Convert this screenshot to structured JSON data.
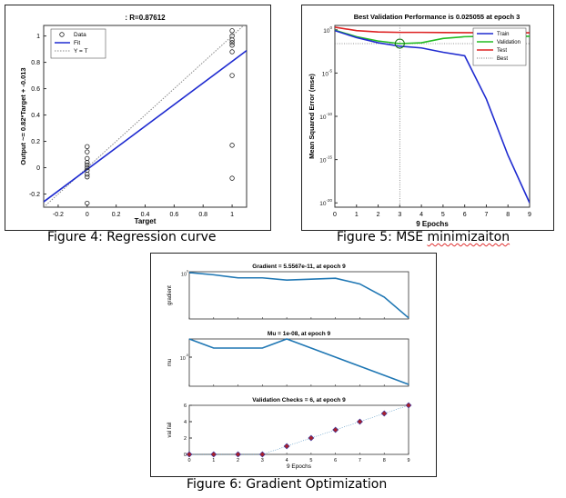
{
  "regression": {
    "chart_data": {
      "type": "scatter",
      "title": ": R=0.87612",
      "xlabel": "Target",
      "ylabel": "Output ~= 0.82*Target + -0.013",
      "xlim": [
        -0.3,
        1.1
      ],
      "ylim": [
        -0.3,
        1.08
      ],
      "xticks": [
        -0.2,
        0,
        0.2,
        0.4,
        0.6,
        0.8,
        1
      ],
      "xtick_labels": [
        "-0.2",
        "0",
        "0.2",
        "0.4",
        "0.6",
        "0.8",
        "1"
      ],
      "yticks": [
        -0.2,
        0,
        0.2,
        0.4,
        0.6,
        0.8,
        1
      ],
      "ytick_labels": [
        "-0.2",
        "0",
        "0.2",
        "0.4",
        "0.6",
        "0.8",
        "1"
      ],
      "legend": [
        {
          "label": "Data",
          "marker": "circle",
          "color": "#000000"
        },
        {
          "label": "Fit",
          "style": "solid",
          "color": "#1f2bd0"
        },
        {
          "label": "Y = T",
          "style": "dotted",
          "color": "#888888"
        }
      ],
      "legend_position": "top-left",
      "data_points": [
        {
          "x": 0,
          "y": 0.16
        },
        {
          "x": 0,
          "y": 0.12
        },
        {
          "x": 0,
          "y": 0.07
        },
        {
          "x": 0,
          "y": 0.04
        },
        {
          "x": 0,
          "y": 0.02
        },
        {
          "x": 0,
          "y": 0.0
        },
        {
          "x": 0,
          "y": -0.02
        },
        {
          "x": 0,
          "y": -0.05
        },
        {
          "x": 0,
          "y": -0.07
        },
        {
          "x": 0,
          "y": -0.27
        },
        {
          "x": 1,
          "y": 1.04
        },
        {
          "x": 1,
          "y": 1.0
        },
        {
          "x": 1,
          "y": 0.97
        },
        {
          "x": 1,
          "y": 0.95
        },
        {
          "x": 1,
          "y": 0.93
        },
        {
          "x": 1,
          "y": 0.88
        },
        {
          "x": 1,
          "y": 0.7
        },
        {
          "x": 1,
          "y": 0.17
        },
        {
          "x": 1,
          "y": -0.08
        }
      ],
      "fit": {
        "slope": 0.82,
        "intercept": -0.013
      },
      "grid": false
    },
    "caption": "Figure 4: Regression curve"
  },
  "mse": {
    "chart_data": {
      "type": "line",
      "title": "Best Validation Performance is 0.025055 at epoch 3",
      "xlabel": "9 Epochs",
      "ylabel": "Mean Squared Error (mse)",
      "yscale": "log",
      "xlim": [
        0,
        9
      ],
      "ylim_log10": [
        -20.5,
        0.5
      ],
      "xticks": [
        0,
        1,
        2,
        3,
        4,
        5,
        6,
        7,
        8,
        9
      ],
      "xtick_labels": [
        "0",
        "1",
        "2",
        "3",
        "4",
        "5",
        "6",
        "7",
        "8",
        "9"
      ],
      "ytick_values": [
        "10^0",
        "10^-5",
        "10^-10",
        "10^-15",
        "10^-20"
      ],
      "ytick_labels": [
        {
          "base": "10",
          "exp": "0"
        },
        {
          "base": "10",
          "exp": "-5"
        },
        {
          "base": "10",
          "exp": "-10"
        },
        {
          "base": "10",
          "exp": "-15"
        },
        {
          "base": "10",
          "exp": "-20"
        }
      ],
      "series": [
        {
          "name": "Train",
          "color": "#1f2bd0",
          "x": [
            0,
            1,
            2,
            3,
            4,
            5,
            6,
            7,
            8,
            9
          ],
          "y_log10": [
            -0.1,
            -0.9,
            -1.5,
            -1.9,
            -2.1,
            -2.6,
            -3.0,
            -8.0,
            -14.5,
            -20.0
          ]
        },
        {
          "name": "Validation",
          "color": "#22bb22",
          "x": [
            0,
            1,
            2,
            3,
            4,
            5,
            6,
            7,
            8,
            9
          ],
          "y_log10": [
            -0.05,
            -0.8,
            -1.3,
            -1.6,
            -1.5,
            -1.0,
            -0.8,
            -0.75,
            -0.75,
            -0.75
          ]
        },
        {
          "name": "Test",
          "color": "#dd2222",
          "x": [
            0,
            1,
            2,
            3,
            4,
            5,
            6,
            7,
            8,
            9
          ],
          "y_log10": [
            0.3,
            -0.1,
            -0.25,
            -0.3,
            -0.3,
            -0.32,
            -0.33,
            -0.35,
            -0.35,
            -0.35
          ]
        }
      ],
      "best": {
        "label": "Best",
        "epoch": 3,
        "value": 0.025055,
        "y_log10": -1.6
      },
      "legend_position": "top-right",
      "grid": false
    },
    "caption_text": "Figure 5: MSE ",
    "caption_misspelled": "minimizaiton"
  },
  "gradient_opt": {
    "panels": [
      {
        "title": "Gradient = 5.5567e-11, at epoch 9",
        "ylabel": "gradient",
        "tick_base": "10",
        "tick_exp": "0",
        "yscale": "log",
        "ylim_log10": [
          -10.5,
          0.3
        ],
        "tick_log10": 0,
        "series": {
          "name": "gradient",
          "x": [
            0,
            1,
            2,
            3,
            4,
            5,
            6,
            7,
            8,
            9
          ],
          "y_log10": [
            0.1,
            -0.4,
            -1.1,
            -1.1,
            -1.6,
            -1.4,
            -1.2,
            -2.5,
            -5.5,
            -10.25
          ]
        }
      },
      {
        "title": "Mu = 1e-08, at epoch 9",
        "ylabel": "mu",
        "tick_base": "10",
        "tick_exp": "-5",
        "yscale": "log",
        "ylim_log10": [
          -8.2,
          -3.0
        ],
        "tick_log10": -5,
        "series": {
          "name": "mu",
          "x": [
            0,
            1,
            2,
            3,
            4,
            5,
            6,
            7,
            8,
            9
          ],
          "y_log10": [
            -3.0,
            -4.0,
            -4.0,
            -4.0,
            -3.0,
            -4.0,
            -5.0,
            -6.0,
            -7.0,
            -8.0
          ]
        }
      },
      {
        "title": "Validation Checks = 6, at epoch 9",
        "ylabel": "val fail",
        "xlabel": "9 Epochs",
        "ylim": [
          0,
          6
        ],
        "yticks": [
          "0",
          "2",
          "4",
          "6"
        ],
        "xticks": [
          "0",
          "1",
          "2",
          "3",
          "4",
          "5",
          "6",
          "7",
          "8",
          "9"
        ],
        "series": {
          "name": "val fail",
          "x": [
            0,
            1,
            2,
            3,
            4,
            5,
            6,
            7,
            8,
            9
          ],
          "y": [
            0,
            0,
            0,
            0,
            1,
            2,
            3,
            4,
            5,
            6
          ]
        }
      }
    ],
    "caption": "Figure 6: Gradient Optimization"
  }
}
